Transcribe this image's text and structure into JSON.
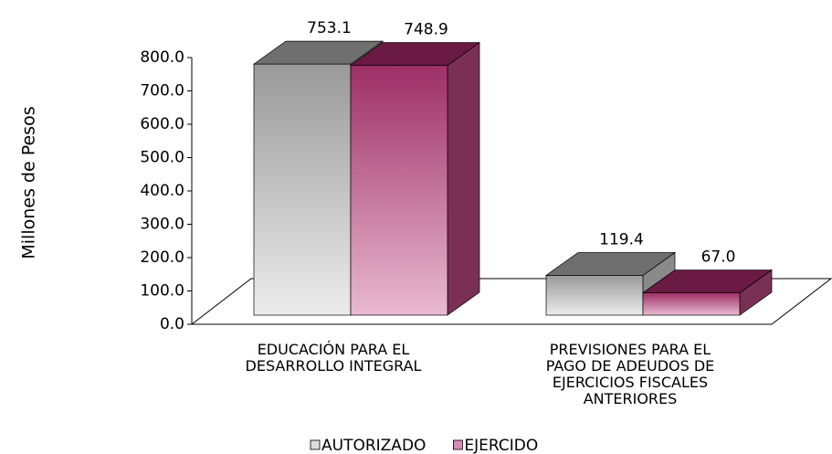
{
  "chart_data": {
    "type": "bar3d",
    "y_label": "Millones de Pesos",
    "categories": [
      "EDUCACIÓN PARA EL DESARROLLO INTEGRAL",
      "PREVISIONES PARA EL PAGO DE ADEUDOS DE EJERCICIOS FISCALES ANTERIORES"
    ],
    "series": [
      {
        "name": "AUTORIZADO",
        "color": "#9a9a9a",
        "values": [
          753.1,
          119.4
        ],
        "value_labels": [
          "753.1",
          "119.4"
        ]
      },
      {
        "name": "EJERCIDO",
        "color": "#9e2f66",
        "values": [
          748.9,
          67.0
        ],
        "value_labels": [
          "748.9",
          "67.0"
        ]
      }
    ],
    "ylim": [
      0,
      800
    ],
    "yticks": [
      {
        "value": 0,
        "label": "0.0"
      },
      {
        "value": 100,
        "label": "100.0"
      },
      {
        "value": 200,
        "label": "200.0"
      },
      {
        "value": 300,
        "label": "300.0"
      },
      {
        "value": 400,
        "label": "400.0"
      },
      {
        "value": 500,
        "label": "500.0"
      },
      {
        "value": 600,
        "label": "600.0"
      },
      {
        "value": 700,
        "label": "700.0"
      },
      {
        "value": 800,
        "label": "800.0"
      }
    ],
    "legend": "bottom"
  }
}
